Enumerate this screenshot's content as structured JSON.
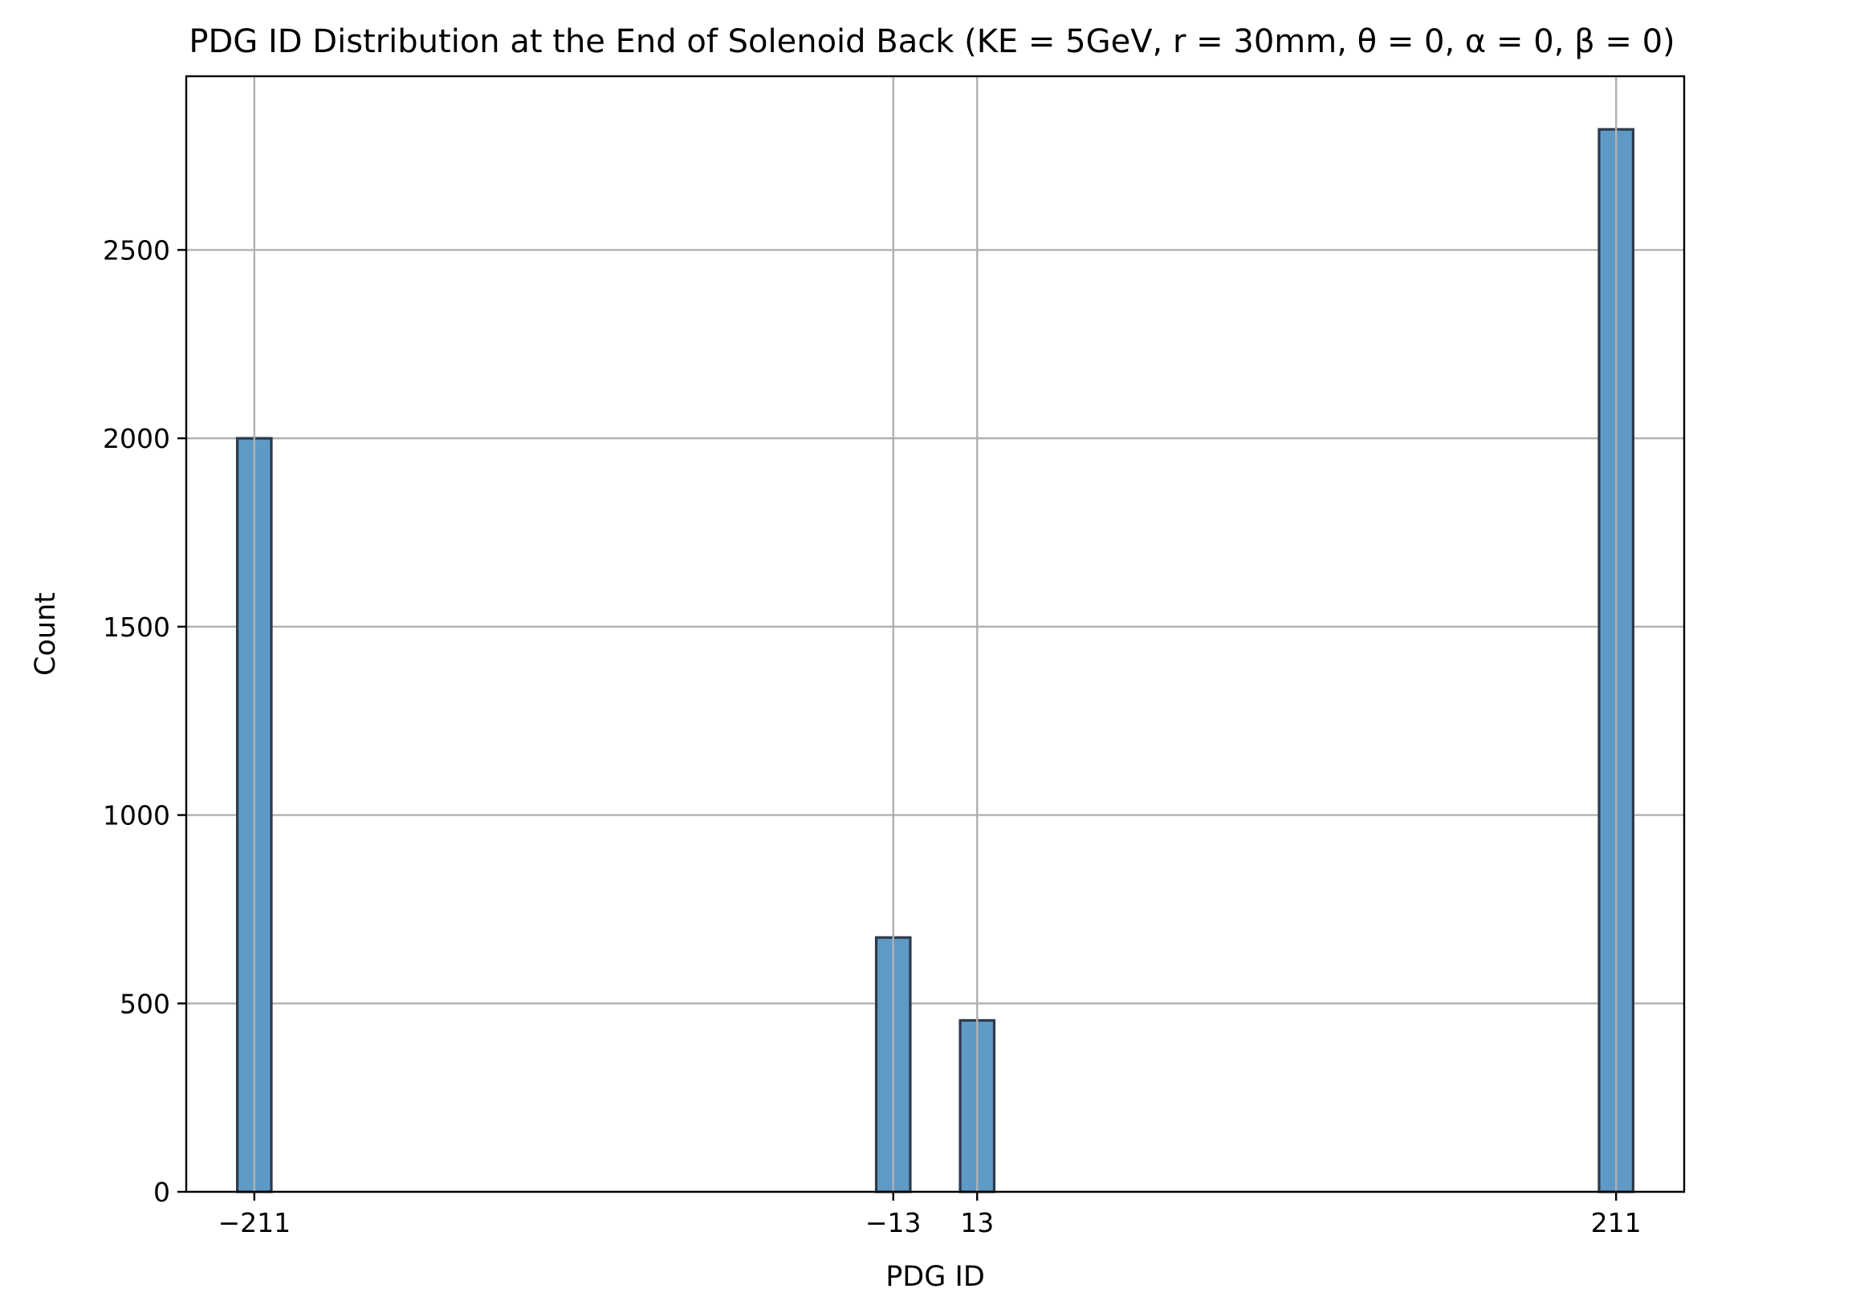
{
  "chart_data": {
    "type": "bar",
    "title": "PDG ID Distribution at the End of Solenoid Back (KE = 5GeV, r = 30mm, θ = 0, α = 0, β = 0)",
    "xlabel": "PDG ID",
    "ylabel": "Count",
    "categories": [
      "−211",
      "−13",
      "13",
      "211"
    ],
    "x": [
      -211,
      -13,
      13,
      211
    ],
    "values": [
      2000,
      675,
      455,
      2820
    ],
    "xticks": [
      -211,
      -13,
      13,
      211
    ],
    "xtick_labels": [
      "−211",
      "−13",
      "13",
      "211"
    ],
    "yticks": [
      0,
      500,
      1000,
      1500,
      2000,
      2500
    ],
    "ytick_labels": [
      "0",
      "500",
      "1000",
      "1500",
      "2000",
      "2500"
    ],
    "xlim": [
      -232.1,
      232.1
    ],
    "ylim": [
      0,
      2961
    ],
    "bar_width": 10.55,
    "grid": true,
    "colors": {
      "bar_fill": "#5f99c6",
      "bar_edge": "#2b3a4a",
      "grid": "#b0b0b0"
    }
  }
}
